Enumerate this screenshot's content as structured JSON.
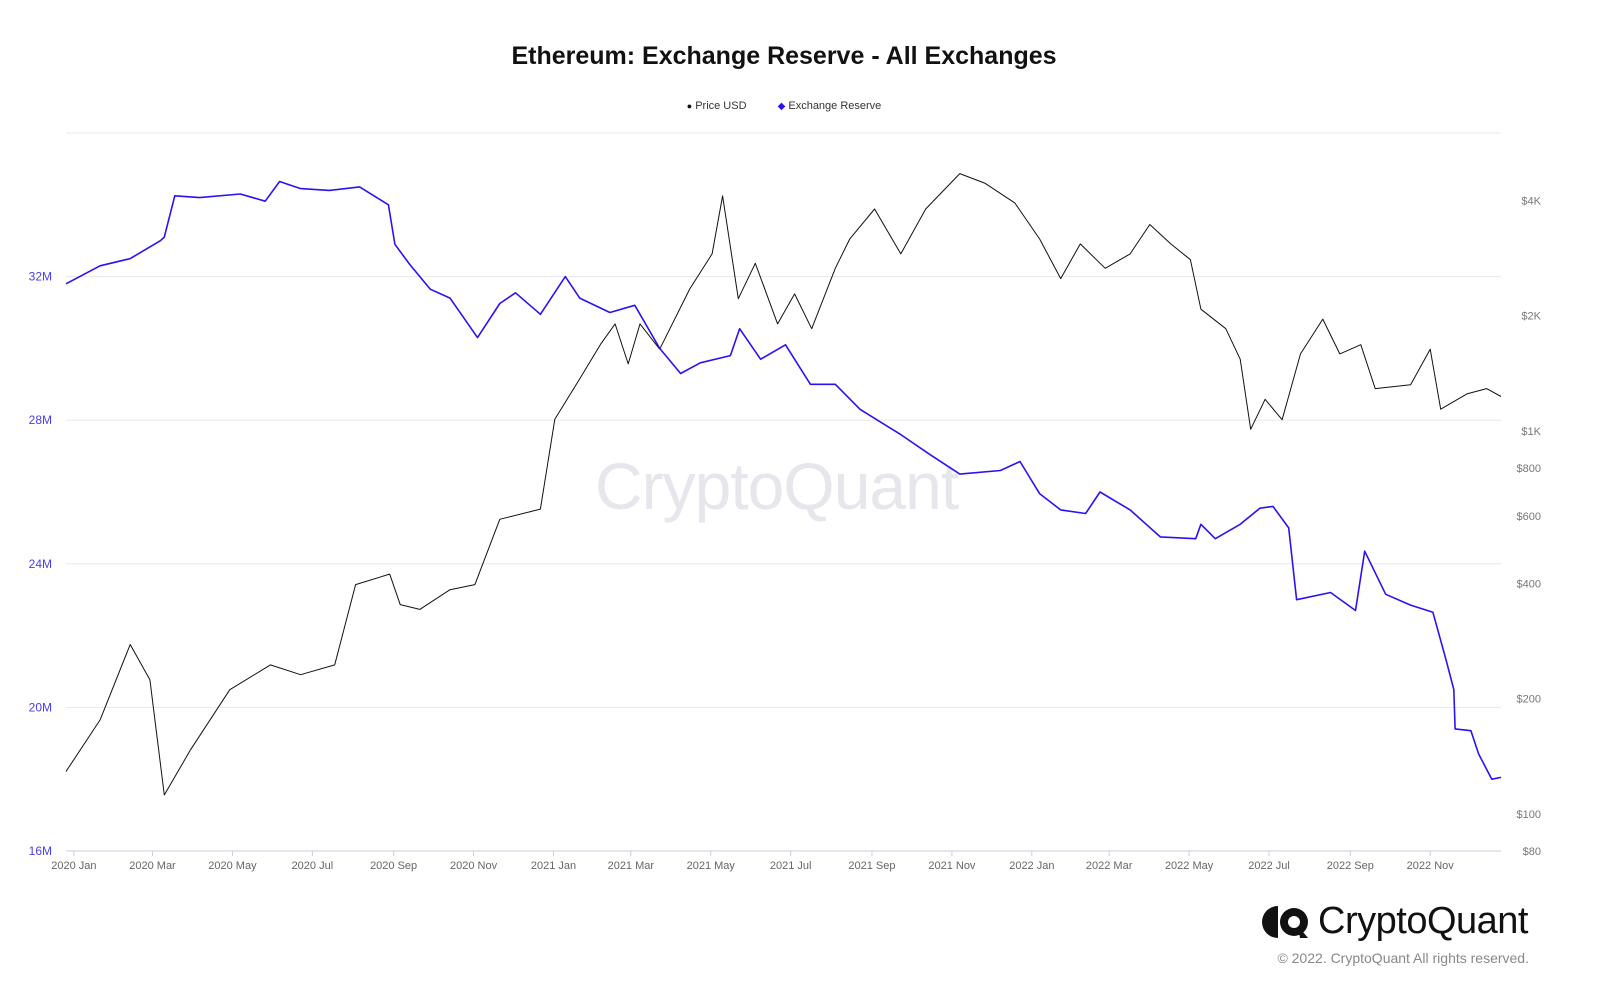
{
  "watermark": "CryptoQuant",
  "brand": {
    "name": "CryptoQuant",
    "copyright": "© 2022. CryptoQuant All rights reserved."
  },
  "colors": {
    "price": "#111111",
    "reserve": "#2b12f2",
    "left_axis_text": "#4a3cf0",
    "grid": "#e8e8ec"
  },
  "chart_data": {
    "type": "line",
    "title": "Ethereum: Exchange Reserve - All Exchanges",
    "legend": {
      "placement": "top-center",
      "entries": [
        "Price USD",
        "Exchange Reserve"
      ]
    },
    "xlim": [
      "2019-12-26",
      "2022-12-25"
    ],
    "x_ticks": [
      "2020 Jan",
      "2020 Mar",
      "2020 May",
      "2020 Jul",
      "2020 Sep",
      "2020 Nov",
      "2021 Jan",
      "2021 Mar",
      "2021 May",
      "2021 Jul",
      "2021 Sep",
      "2021 Nov",
      "2022 Jan",
      "2022 Mar",
      "2022 May",
      "2022 Jul",
      "2022 Sep",
      "2022 Nov"
    ],
    "y_left": {
      "ylim": [
        16,
        36
      ],
      "unit": "M",
      "ticks": [
        {
          "v": 16,
          "label": "16M"
        },
        {
          "v": 20,
          "label": "20M"
        },
        {
          "v": 24,
          "label": "24M"
        },
        {
          "v": 28,
          "label": "28M"
        },
        {
          "v": 32,
          "label": "32M"
        }
      ]
    },
    "y_right": {
      "scale": "log",
      "ylim": [
        80,
        6000
      ],
      "ticks": [
        {
          "v": 80,
          "label": "$80"
        },
        {
          "v": 100,
          "label": "$100"
        },
        {
          "v": 200,
          "label": "$200"
        },
        {
          "v": 400,
          "label": "$400"
        },
        {
          "v": 600,
          "label": "$600"
        },
        {
          "v": 800,
          "label": "$800"
        },
        {
          "v": 1000,
          "label": "$1K"
        },
        {
          "v": 2000,
          "label": "$2K"
        },
        {
          "v": 4000,
          "label": "$4K"
        }
      ]
    },
    "grid": true,
    "series": [
      {
        "name": "Price USD",
        "axis": "right",
        "points": [
          [
            "2019-12-26",
            129
          ],
          [
            "2020-01-21",
            176
          ],
          [
            "2020-02-13",
            277
          ],
          [
            "2020-02-28",
            224
          ],
          [
            "2020-03-10",
            112
          ],
          [
            "2020-03-30",
            147
          ],
          [
            "2020-04-29",
            211
          ],
          [
            "2020-05-30",
            245
          ],
          [
            "2020-06-22",
            231
          ],
          [
            "2020-07-18",
            245
          ],
          [
            "2020-08-03",
            397
          ],
          [
            "2020-08-29",
            423
          ],
          [
            "2020-09-06",
            352
          ],
          [
            "2020-09-21",
            342
          ],
          [
            "2020-10-14",
            385
          ],
          [
            "2020-11-02",
            397
          ],
          [
            "2020-11-21",
            588
          ],
          [
            "2020-12-22",
            625
          ],
          [
            "2021-01-02",
            1073
          ],
          [
            "2021-01-21",
            1368
          ],
          [
            "2021-02-06",
            1686
          ],
          [
            "2021-02-17",
            1904
          ],
          [
            "2021-02-27",
            1497
          ],
          [
            "2021-03-08",
            1904
          ],
          [
            "2021-03-23",
            1635
          ],
          [
            "2021-04-15",
            2350
          ],
          [
            "2021-05-02",
            2900
          ],
          [
            "2021-05-10",
            4110
          ],
          [
            "2021-05-22",
            2215
          ],
          [
            "2021-06-04",
            2740
          ],
          [
            "2021-06-21",
            1904
          ],
          [
            "2021-07-04",
            2280
          ],
          [
            "2021-07-17",
            1850
          ],
          [
            "2021-08-04",
            2660
          ],
          [
            "2021-08-15",
            3170
          ],
          [
            "2021-09-03",
            3800
          ],
          [
            "2021-09-23",
            2900
          ],
          [
            "2021-10-12",
            3800
          ],
          [
            "2021-11-07",
            4700
          ],
          [
            "2021-11-26",
            4440
          ],
          [
            "2021-12-19",
            3940
          ],
          [
            "2022-01-07",
            3170
          ],
          [
            "2022-01-23",
            2500
          ],
          [
            "2022-02-07",
            3080
          ],
          [
            "2022-02-26",
            2660
          ],
          [
            "2022-03-17",
            2900
          ],
          [
            "2022-04-01",
            3460
          ],
          [
            "2022-04-17",
            3080
          ],
          [
            "2022-05-02",
            2800
          ],
          [
            "2022-05-10",
            2080
          ],
          [
            "2022-05-29",
            1850
          ],
          [
            "2022-06-09",
            1540
          ],
          [
            "2022-06-17",
            1010
          ],
          [
            "2022-06-28",
            1210
          ],
          [
            "2022-07-11",
            1070
          ],
          [
            "2022-07-25",
            1590
          ],
          [
            "2022-08-11",
            1960
          ],
          [
            "2022-08-24",
            1590
          ],
          [
            "2022-09-09",
            1680
          ],
          [
            "2022-09-20",
            1290
          ],
          [
            "2022-10-17",
            1320
          ],
          [
            "2022-11-01",
            1635
          ],
          [
            "2022-11-09",
            1140
          ],
          [
            "2022-11-29",
            1250
          ],
          [
            "2022-12-14",
            1290
          ],
          [
            "2022-12-25",
            1230
          ]
        ]
      },
      {
        "name": "Exchange Reserve",
        "axis": "left",
        "points": [
          [
            "2019-12-26",
            31.8
          ],
          [
            "2020-01-21",
            32.3
          ],
          [
            "2020-02-13",
            32.5
          ],
          [
            "2020-03-07",
            33.0
          ],
          [
            "2020-03-10",
            33.1
          ],
          [
            "2020-03-18",
            34.25
          ],
          [
            "2020-04-06",
            34.2
          ],
          [
            "2020-05-07",
            34.3
          ],
          [
            "2020-05-26",
            34.1
          ],
          [
            "2020-06-06",
            34.65
          ],
          [
            "2020-06-22",
            34.45
          ],
          [
            "2020-07-14",
            34.4
          ],
          [
            "2020-08-06",
            34.5
          ],
          [
            "2020-08-28",
            34.0
          ],
          [
            "2020-09-02",
            32.9
          ],
          [
            "2020-09-13",
            32.35
          ],
          [
            "2020-09-29",
            31.65
          ],
          [
            "2020-10-14",
            31.4
          ],
          [
            "2020-11-04",
            30.3
          ],
          [
            "2020-11-21",
            31.25
          ],
          [
            "2020-12-03",
            31.55
          ],
          [
            "2020-12-22",
            30.95
          ],
          [
            "2021-01-10",
            32.0
          ],
          [
            "2021-01-21",
            31.4
          ],
          [
            "2021-02-13",
            31.0
          ],
          [
            "2021-03-04",
            31.2
          ],
          [
            "2021-03-23",
            30.0
          ],
          [
            "2021-04-08",
            29.3
          ],
          [
            "2021-04-23",
            29.6
          ],
          [
            "2021-05-16",
            29.8
          ],
          [
            "2021-05-23",
            30.55
          ],
          [
            "2021-06-08",
            29.7
          ],
          [
            "2021-06-27",
            30.1
          ],
          [
            "2021-07-16",
            29.0
          ],
          [
            "2021-08-04",
            29.0
          ],
          [
            "2021-08-23",
            28.3
          ],
          [
            "2021-09-23",
            27.6
          ],
          [
            "2021-10-15",
            27.05
          ],
          [
            "2021-11-07",
            26.5
          ],
          [
            "2021-12-08",
            26.6
          ],
          [
            "2021-12-23",
            26.85
          ],
          [
            "2022-01-07",
            25.95
          ],
          [
            "2022-01-23",
            25.5
          ],
          [
            "2022-02-11",
            25.4
          ],
          [
            "2022-02-22",
            26.0
          ],
          [
            "2022-03-17",
            25.5
          ],
          [
            "2022-04-09",
            24.75
          ],
          [
            "2022-05-06",
            24.7
          ],
          [
            "2022-05-10",
            25.1
          ],
          [
            "2022-05-21",
            24.7
          ],
          [
            "2022-06-09",
            25.1
          ],
          [
            "2022-06-24",
            25.55
          ],
          [
            "2022-07-04",
            25.6
          ],
          [
            "2022-07-16",
            25.0
          ],
          [
            "2022-07-22",
            23.0
          ],
          [
            "2022-08-17",
            23.2
          ],
          [
            "2022-09-05",
            22.7
          ],
          [
            "2022-09-12",
            24.35
          ],
          [
            "2022-09-28",
            23.15
          ],
          [
            "2022-10-17",
            22.85
          ],
          [
            "2022-11-03",
            22.65
          ],
          [
            "2022-11-13",
            21.33
          ],
          [
            "2022-11-19",
            20.5
          ],
          [
            "2022-11-20",
            19.4
          ],
          [
            "2022-12-02",
            19.35
          ],
          [
            "2022-12-08",
            18.7
          ],
          [
            "2022-12-18",
            18.0
          ],
          [
            "2022-12-25",
            18.05
          ]
        ]
      }
    ]
  }
}
